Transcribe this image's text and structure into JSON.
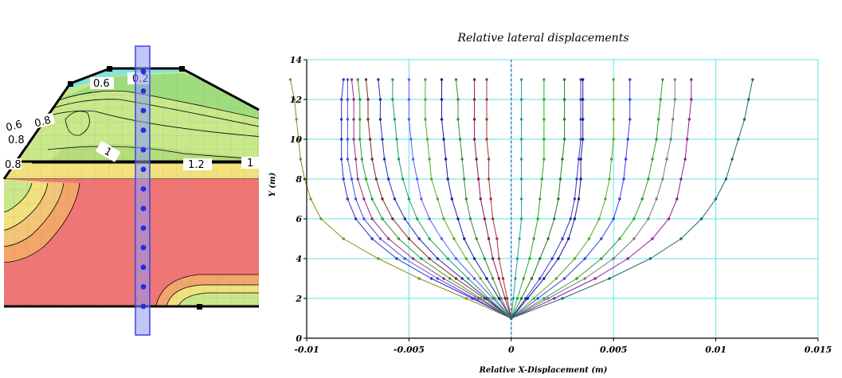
{
  "contour_panel": {
    "labels": [
      "0.6",
      "0.2",
      "0.6",
      "0.8",
      "0.8",
      "1",
      "0.8",
      "1.2",
      "1"
    ],
    "colors": {
      "red": "#f07575",
      "orange": "#f3a56a",
      "yellow": "#f1e27d",
      "lightgreen": "#c8e88a",
      "green": "#9fdc7e",
      "cyan": "#82e6e0",
      "selection": "#5560ee"
    }
  },
  "chart_data": {
    "type": "line",
    "title": "Relative lateral displacements",
    "xlabel": "Relative X-Displacement (m)",
    "ylabel": "Y (m)",
    "xlim": [
      -0.01,
      0.015
    ],
    "ylim": [
      0,
      14
    ],
    "xticks": [
      "-0.01",
      "-0.005",
      "0",
      "0.005",
      "0.01",
      "0.015"
    ],
    "yticks": [
      "0",
      "2",
      "4",
      "6",
      "8",
      "10",
      "12",
      "14"
    ],
    "grid": true,
    "y": [
      1,
      2,
      3,
      4,
      5,
      6,
      7,
      8,
      9,
      10,
      11,
      12,
      13
    ],
    "series": [
      {
        "color": "#8b8b1e",
        "values": [
          0,
          -0.0022,
          -0.0045,
          -0.0065,
          -0.0082,
          -0.0093,
          -0.0098,
          -0.0101,
          -0.0103,
          -0.0104,
          -0.0105,
          -0.0106,
          -0.0108
        ]
      },
      {
        "color": "#3030d0",
        "values": [
          0,
          -0.0019,
          -0.0039,
          -0.0056,
          -0.0068,
          -0.0076,
          -0.008,
          -0.0082,
          -0.0083,
          -0.0083,
          -0.0083,
          -0.0083,
          -0.0082
        ]
      },
      {
        "color": "#4b4be0",
        "values": [
          0,
          -0.0018,
          -0.0036,
          -0.0052,
          -0.0064,
          -0.0072,
          -0.0076,
          -0.0078,
          -0.008,
          -0.008,
          -0.008,
          -0.008,
          -0.008
        ]
      },
      {
        "color": "#9a2a7a",
        "values": [
          0,
          -0.0016,
          -0.0033,
          -0.0048,
          -0.006,
          -0.0068,
          -0.0072,
          -0.0075,
          -0.0076,
          -0.0077,
          -0.0077,
          -0.0077,
          -0.0078
        ]
      },
      {
        "color": "#2a9a2a",
        "values": [
          0,
          -0.0015,
          -0.003,
          -0.0044,
          -0.0055,
          -0.0063,
          -0.0068,
          -0.0071,
          -0.0073,
          -0.0074,
          -0.0074,
          -0.0074,
          -0.0075
        ]
      },
      {
        "color": "#7a2a2a",
        "values": [
          0,
          -0.0013,
          -0.0027,
          -0.004,
          -0.005,
          -0.0058,
          -0.0063,
          -0.0066,
          -0.0068,
          -0.0069,
          -0.007,
          -0.007,
          -0.0071
        ]
      },
      {
        "color": "#2a2ab0",
        "values": [
          0,
          -0.0012,
          -0.0024,
          -0.0036,
          -0.0045,
          -0.0052,
          -0.0057,
          -0.006,
          -0.0062,
          -0.0063,
          -0.0064,
          -0.0064,
          -0.0065
        ]
      },
      {
        "color": "#1aa05a",
        "values": [
          0,
          -0.0011,
          -0.0021,
          -0.0031,
          -0.004,
          -0.0046,
          -0.005,
          -0.0053,
          -0.0055,
          -0.0056,
          -0.0057,
          -0.0058,
          -0.0058
        ]
      },
      {
        "color": "#5a5aff",
        "values": [
          0,
          -0.0009,
          -0.0018,
          -0.0027,
          -0.0034,
          -0.004,
          -0.0044,
          -0.0046,
          -0.0048,
          -0.0049,
          -0.005,
          -0.005,
          -0.005
        ]
      },
      {
        "color": "#55aa22",
        "values": [
          0,
          -0.0008,
          -0.0015,
          -0.0022,
          -0.0028,
          -0.0033,
          -0.0036,
          -0.0039,
          -0.004,
          -0.0041,
          -0.0042,
          -0.0042,
          -0.0042
        ]
      },
      {
        "color": "#1a1aa0",
        "values": [
          0,
          -0.0006,
          -0.0012,
          -0.0018,
          -0.0023,
          -0.0026,
          -0.0029,
          -0.0031,
          -0.0032,
          -0.0033,
          -0.0034,
          -0.0034,
          -0.0034
        ]
      },
      {
        "color": "#3a8a3a",
        "values": [
          0,
          -0.0005,
          -0.0009,
          -0.0013,
          -0.0017,
          -0.002,
          -0.0022,
          -0.0023,
          -0.0024,
          -0.0025,
          -0.0026,
          -0.0026,
          -0.0027
        ]
      },
      {
        "color": "#8a1a4a",
        "values": [
          0,
          -0.0003,
          -0.0006,
          -0.0009,
          -0.0011,
          -0.0013,
          -0.0015,
          -0.0016,
          -0.0017,
          -0.0018,
          -0.0018,
          -0.0018,
          -0.0018
        ]
      },
      {
        "color": "#aa3333",
        "values": [
          0,
          -0.0002,
          -0.0004,
          -0.0006,
          -0.0007,
          -0.0009,
          -0.001,
          -0.0011,
          -0.0011,
          -0.0012,
          -0.0012,
          -0.0012,
          -0.0012
        ]
      },
      {
        "color": "#1aa0a0",
        "values": [
          0,
          0.0001,
          0.0002,
          0.0003,
          0.0004,
          0.0005,
          0.0005,
          0.0005,
          0.0005,
          0.0005,
          0.0005,
          0.0005,
          0.0005
        ]
      },
      {
        "color": "#2aaa2a",
        "values": [
          0,
          0.0003,
          0.0006,
          0.0009,
          0.0011,
          0.0013,
          0.0014,
          0.0015,
          0.0016,
          0.0016,
          0.0016,
          0.0016,
          0.0016
        ]
      },
      {
        "color": "#2a7a2a",
        "values": [
          0,
          0.0005,
          0.001,
          0.0014,
          0.0018,
          0.0021,
          0.0023,
          0.0024,
          0.0025,
          0.0026,
          0.0026,
          0.0026,
          0.0026
        ]
      },
      {
        "color": "#3333cc",
        "values": [
          0,
          0.0007,
          0.0014,
          0.002,
          0.0025,
          0.0029,
          0.0031,
          0.0032,
          0.0033,
          0.0034,
          0.0034,
          0.0034,
          0.0034
        ]
      },
      {
        "color": "#1a1a88",
        "values": [
          0,
          0.0008,
          0.0016,
          0.0023,
          0.0028,
          0.0031,
          0.0033,
          0.0034,
          0.0034,
          0.0035,
          0.0035,
          0.0035,
          0.0035
        ]
      },
      {
        "color": "#55aa22",
        "values": [
          0,
          0.0011,
          0.0022,
          0.0031,
          0.0038,
          0.0043,
          0.0046,
          0.0048,
          0.0049,
          0.005,
          0.005,
          0.005,
          0.005
        ]
      },
      {
        "color": "#3a3aee",
        "values": [
          0,
          0.0013,
          0.0026,
          0.0036,
          0.0044,
          0.005,
          0.0053,
          0.0055,
          0.0056,
          0.0057,
          0.0058,
          0.0058,
          0.0058
        ]
      },
      {
        "color": "#2aa02a",
        "values": [
          0,
          0.0016,
          0.0032,
          0.0044,
          0.0053,
          0.006,
          0.0064,
          0.0067,
          0.0069,
          0.0071,
          0.0072,
          0.0073,
          0.0074
        ]
      },
      {
        "color": "#7a7a7a",
        "values": [
          0,
          0.0018,
          0.0036,
          0.005,
          0.006,
          0.0067,
          0.0071,
          0.0074,
          0.0076,
          0.0078,
          0.0079,
          0.008,
          0.008
        ]
      },
      {
        "color": "#9a1a9a",
        "values": [
          0,
          0.0021,
          0.0041,
          0.0057,
          0.0069,
          0.0077,
          0.0081,
          0.0083,
          0.0085,
          0.0086,
          0.0087,
          0.0088,
          0.0088
        ]
      },
      {
        "color": "#1a6a6a",
        "values": [
          0,
          0.0025,
          0.0048,
          0.0068,
          0.0083,
          0.0093,
          0.01,
          0.0105,
          0.0108,
          0.0111,
          0.0114,
          0.0116,
          0.0118
        ]
      }
    ]
  }
}
